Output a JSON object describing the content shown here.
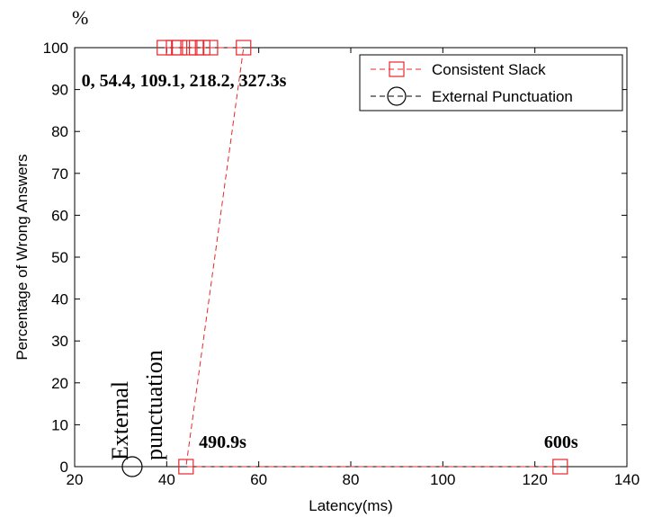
{
  "chart_data": {
    "type": "line",
    "title": "",
    "xlabel": "Latency(ms)",
    "ylabel": "Percentage of Wrong Answers",
    "y_unit": "%",
    "xlim": [
      20,
      140
    ],
    "ylim": [
      0,
      100
    ],
    "x_ticks": [
      "20",
      "40",
      "60",
      "80",
      "100",
      "120",
      "140"
    ],
    "y_ticks": [
      "0",
      "10",
      "20",
      "30",
      "40",
      "50",
      "60",
      "70",
      "80",
      "90",
      "100"
    ],
    "grid": false,
    "legend_position": "top-right",
    "series": [
      {
        "name": "Consistent Slack",
        "color": "#e8262a",
        "line_style": "dashed",
        "marker": "square",
        "points": [
          {
            "x": 39.5,
            "y": 100
          },
          {
            "x": 41.5,
            "y": 100
          },
          {
            "x": 42.8,
            "y": 100
          },
          {
            "x": 45.0,
            "y": 100
          },
          {
            "x": 46.5,
            "y": 100
          },
          {
            "x": 47.8,
            "y": 100
          },
          {
            "x": 49.5,
            "y": 100
          },
          {
            "x": 56.7,
            "y": 100
          },
          {
            "x": 44.2,
            "y": 0
          },
          {
            "x": 125.5,
            "y": 0
          }
        ]
      },
      {
        "name": "External Punctuation",
        "color": "#000000",
        "line_style": "dashed",
        "marker": "circle",
        "points": [
          {
            "x": 32.5,
            "y": 0
          }
        ]
      }
    ],
    "annotations": [
      {
        "id": "slack-values",
        "text": "0, 54.4, 109.1, 218.2, 327.3s",
        "x": 21.5,
        "y": 90.8
      },
      {
        "id": "t490",
        "text": "490.9s",
        "x": 47.0,
        "y": 4.5
      },
      {
        "id": "t600",
        "text": "600s",
        "x": 122.0,
        "y": 4.5
      },
      {
        "id": "ext-line1",
        "text": "External",
        "x": 31.5,
        "y": 1.5,
        "rotation": -90
      },
      {
        "id": "ext-line2",
        "text": "punctuation",
        "x": 39.0,
        "y": 1.5,
        "rotation": -90
      }
    ]
  }
}
